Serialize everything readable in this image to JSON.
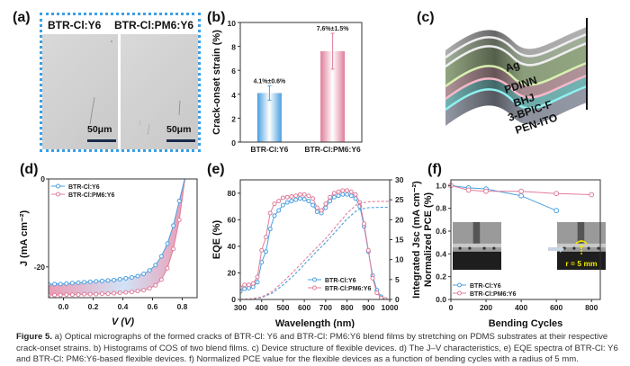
{
  "panels": {
    "a": {
      "label": "(a)",
      "images": [
        {
          "title": "BTR-Cl:Y6",
          "scale": "50μm"
        },
        {
          "title": "BTR-Cl:PM6:Y6",
          "scale": "50μm"
        }
      ]
    },
    "b": {
      "label": "(b)"
    },
    "c": {
      "label": "(c)",
      "layers": [
        "Ag",
        "PDINN",
        "BHJ",
        "3-BPIC-F",
        "PEN-ITO"
      ]
    },
    "d": {
      "label": "(d)"
    },
    "e": {
      "label": "(e)"
    },
    "f": {
      "label": "(f)",
      "inset_annotation": "r = 5 mm"
    }
  },
  "colors": {
    "blue": "#4a9fe0",
    "pink": "#e07d9a",
    "frame": "#3aa0e6",
    "annotation": "#f2e600"
  },
  "caption": {
    "figure": "Figure 5.",
    "text": " a) Optical micrographs of the formed cracks of BTR-Cl: Y6 and BTR-Cl: PM6:Y6 blend films by stretching on PDMS substrates at their respective crack-onset strains. b) Histograms of COS of two blend films. c) Device structure of flexible devices. d) The J–V characteristics, e) EQE spectra of BTR-Cl: Y6 and BTR-Cl: PM6:Y6-based flexible devices. f) Normalized PCE value for the flexible devices as a function of bending cycles with a radius of 5 mm."
  },
  "chart_data": [
    {
      "id": "b",
      "type": "bar",
      "title": "",
      "xlabel": "",
      "ylabel": "Crack-onset strain (%)",
      "ylim": [
        0,
        10
      ],
      "yticks": [
        0,
        2,
        4,
        6,
        8,
        10
      ],
      "categories": [
        "BTR-Cl:Y6",
        "BTR-Cl:PM6:Y6"
      ],
      "values": [
        4.1,
        7.6
      ],
      "errors": [
        0.6,
        1.5
      ],
      "data_labels": [
        "4.1%±0.6%",
        "7.6%±1.5%"
      ],
      "colors": [
        "#4a9fe0",
        "#e07d9a"
      ]
    },
    {
      "id": "d",
      "type": "line",
      "xlabel": "V (V)",
      "ylabel": "J (mA cm⁻²)",
      "xlim": [
        -0.1,
        0.9
      ],
      "ylim": [
        -27,
        0
      ],
      "xticks": [
        0.0,
        0.2,
        0.4,
        0.6,
        0.8
      ],
      "xtick_labels": [
        "0.0",
        "0.2",
        "0.4",
        "0.6",
        "0.8"
      ],
      "yticks": [
        0,
        -20
      ],
      "ytick_labels": [
        "0",
        "-20"
      ],
      "legend": "top-left",
      "series": [
        {
          "name": "BTR-Cl:Y6",
          "color": "#4a9fe0",
          "x": [
            -0.1,
            -0.06,
            -0.02,
            0.02,
            0.06,
            0.1,
            0.14,
            0.18,
            0.22,
            0.26,
            0.3,
            0.34,
            0.38,
            0.42,
            0.46,
            0.5,
            0.54,
            0.58,
            0.62,
            0.66,
            0.7,
            0.74,
            0.78,
            0.82
          ],
          "y": [
            -24.0,
            -23.9,
            -23.9,
            -23.8,
            -23.7,
            -23.6,
            -23.5,
            -23.4,
            -23.3,
            -23.2,
            -23.1,
            -23.0,
            -22.8,
            -22.6,
            -22.4,
            -22.1,
            -21.6,
            -20.8,
            -19.6,
            -17.6,
            -14.7,
            -10.6,
            -5.0,
            0.5
          ]
        },
        {
          "name": "BTR-Cl:PM6:Y6",
          "color": "#e07d9a",
          "x": [
            -0.1,
            -0.06,
            -0.02,
            0.02,
            0.06,
            0.1,
            0.14,
            0.18,
            0.22,
            0.26,
            0.3,
            0.34,
            0.38,
            0.42,
            0.46,
            0.5,
            0.54,
            0.58,
            0.62,
            0.66,
            0.7,
            0.74,
            0.78,
            0.82
          ],
          "y": [
            -26.4,
            -26.4,
            -26.4,
            -26.3,
            -26.3,
            -26.3,
            -26.2,
            -26.2,
            -26.2,
            -26.1,
            -26.1,
            -26.0,
            -25.9,
            -25.8,
            -25.7,
            -25.5,
            -25.3,
            -24.9,
            -24.2,
            -22.9,
            -20.3,
            -15.9,
            -9.3,
            0.5
          ]
        }
      ]
    },
    {
      "id": "e",
      "type": "line",
      "xlabel": "Wavelength (nm)",
      "ylabel": "EQE (%)",
      "ylabel_right": "Integrated Jsc (mA cm⁻²)",
      "xlim": [
        300,
        1000
      ],
      "ylim": [
        0,
        90
      ],
      "ylim_right": [
        0,
        30
      ],
      "xticks": [
        300,
        400,
        500,
        600,
        700,
        800,
        900,
        1000
      ],
      "yticks": [
        0,
        20,
        40,
        60,
        80
      ],
      "yticks_right": [
        0,
        5,
        10,
        15,
        20,
        25,
        30
      ],
      "legend": "bottom-right",
      "series": [
        {
          "name": "BTR-Cl:Y6",
          "color": "#4a9fe0",
          "x": [
            300,
            320,
            340,
            360,
            380,
            400,
            420,
            440,
            460,
            480,
            500,
            520,
            540,
            560,
            580,
            600,
            620,
            640,
            660,
            680,
            700,
            720,
            740,
            760,
            780,
            800,
            820,
            840,
            860,
            880,
            900,
            920,
            940,
            960,
            980
          ],
          "y": [
            6,
            8,
            8.5,
            9.5,
            13,
            28,
            36,
            53,
            63,
            67,
            71,
            73,
            74,
            75,
            76,
            75.5,
            74,
            71,
            66,
            65,
            69,
            74,
            77,
            78,
            79,
            79,
            78,
            76,
            70,
            55,
            36,
            18,
            7,
            2,
            0
          ]
        },
        {
          "name": "BTR-Cl:PM6:Y6",
          "color": "#e07d9a",
          "x": [
            300,
            320,
            340,
            360,
            380,
            400,
            420,
            440,
            460,
            480,
            500,
            520,
            540,
            560,
            580,
            600,
            620,
            640,
            660,
            680,
            700,
            720,
            740,
            760,
            780,
            800,
            820,
            840,
            860,
            880,
            900,
            920,
            940,
            960,
            980
          ],
          "y": [
            9,
            11,
            11,
            12,
            17,
            37,
            47,
            65,
            72,
            74,
            76.5,
            77,
            77.5,
            78,
            79,
            79,
            78,
            76,
            69,
            67,
            72,
            77,
            80,
            81,
            82,
            82,
            81,
            79,
            73,
            57,
            37,
            16,
            5,
            1,
            0
          ]
        },
        {
          "name": "BTR-Cl:Y6 Integrated Jsc",
          "color": "#4a9fe0",
          "dashed": true,
          "axis": "right",
          "x": [
            300,
            350,
            400,
            450,
            500,
            550,
            600,
            650,
            700,
            750,
            800,
            850,
            900,
            950,
            1000
          ],
          "y": [
            0,
            0.1,
            0.5,
            1.6,
            3.6,
            6.0,
            8.8,
            11.6,
            14.3,
            17.2,
            20.2,
            22.5,
            23.0,
            23.1,
            23.1
          ]
        },
        {
          "name": "BTR-Cl:PM6:Y6 Integrated Jsc",
          "color": "#e07d9a",
          "dashed": true,
          "axis": "right",
          "x": [
            300,
            350,
            400,
            450,
            500,
            550,
            600,
            650,
            700,
            750,
            800,
            850,
            900,
            950,
            1000
          ],
          "y": [
            0,
            0.15,
            0.6,
            2.0,
            4.4,
            7.0,
            9.8,
            12.6,
            15.3,
            18.4,
            21.6,
            24.0,
            24.5,
            24.6,
            24.6
          ]
        }
      ]
    },
    {
      "id": "f",
      "type": "line",
      "xlabel": "Bending Cycles",
      "ylabel": "Normalized PCE (%)",
      "xlim": [
        0,
        850
      ],
      "ylim": [
        0,
        1.05
      ],
      "xticks": [
        0,
        200,
        400,
        600,
        800
      ],
      "yticks": [
        0.0,
        0.2,
        0.4,
        0.6,
        0.8,
        1.0
      ],
      "ytick_labels": [
        "0.0",
        "0.2",
        "0.4",
        "0.6",
        "0.8",
        "1.0"
      ],
      "legend": "bottom-left",
      "series": [
        {
          "name": "BTR-Cl:Y6",
          "color": "#4a9fe0",
          "x": [
            0,
            100,
            200,
            400,
            600
          ],
          "y": [
            1.0,
            0.98,
            0.97,
            0.91,
            0.78
          ]
        },
        {
          "name": "BTR-Cl:PM6:Y6",
          "color": "#e07d9a",
          "x": [
            0,
            100,
            200,
            400,
            600,
            800
          ],
          "y": [
            1.0,
            0.96,
            0.95,
            0.95,
            0.93,
            0.92
          ]
        }
      ]
    }
  ]
}
